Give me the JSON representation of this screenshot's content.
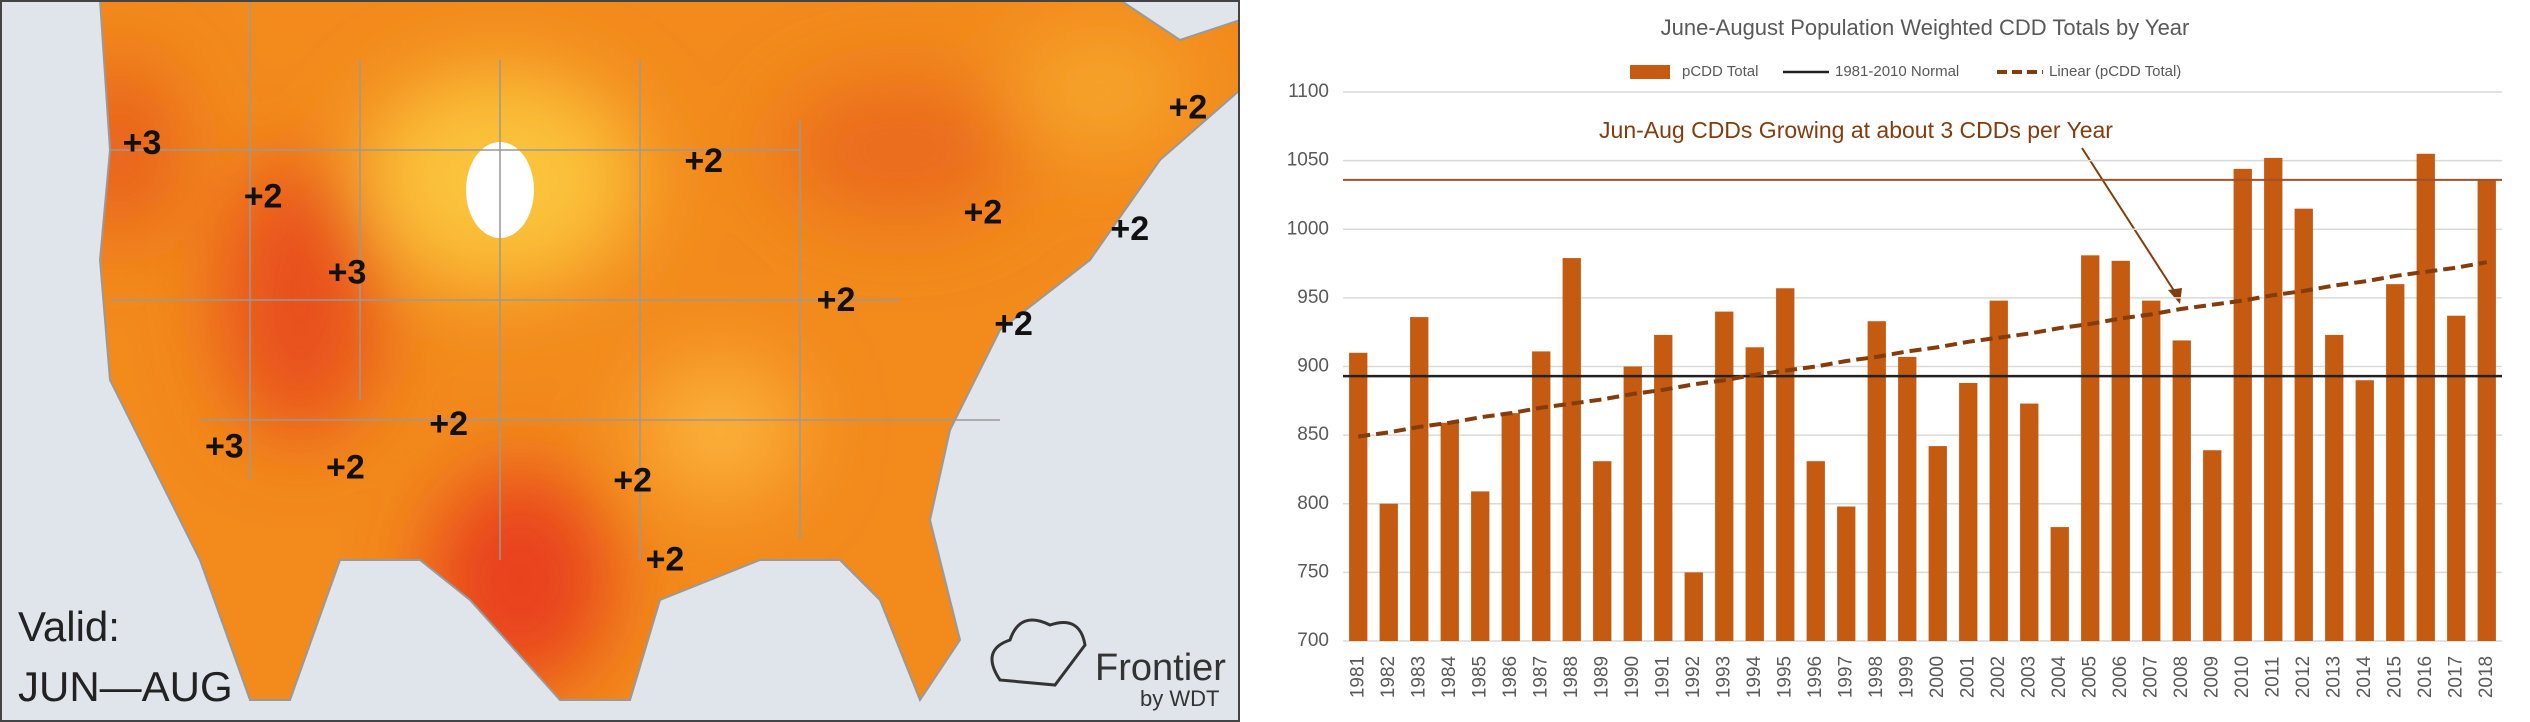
{
  "map": {
    "labels": [
      {
        "text": "+3",
        "x": 88,
        "y": 90
      },
      {
        "text": "+2",
        "x": 163,
        "y": 123
      },
      {
        "text": "+3",
        "x": 215,
        "y": 170
      },
      {
        "text": "+2",
        "x": 436,
        "y": 101
      },
      {
        "text": "+2",
        "x": 736,
        "y": 68
      },
      {
        "text": "+2",
        "x": 609,
        "y": 133
      },
      {
        "text": "+2",
        "x": 700,
        "y": 143
      },
      {
        "text": "+2",
        "x": 518,
        "y": 187
      },
      {
        "text": "+2",
        "x": 628,
        "y": 202
      },
      {
        "text": "+3",
        "x": 139,
        "y": 278
      },
      {
        "text": "+2",
        "x": 214,
        "y": 291
      },
      {
        "text": "+2",
        "x": 278,
        "y": 264
      },
      {
        "text": "+2",
        "x": 392,
        "y": 299
      },
      {
        "text": "+2",
        "x": 412,
        "y": 348
      }
    ],
    "valid_label": "Valid:",
    "valid_period": "JUN—AUG",
    "brand": "Frontier",
    "brand_sub": "by WDT"
  },
  "chart_data": {
    "type": "bar",
    "title": "June-August Population Weighted CDD Totals by Year",
    "annotation": "Jun-Aug CDDs Growing at about 3 CDDs per Year",
    "categories": [
      "1981",
      "1982",
      "1983",
      "1984",
      "1985",
      "1986",
      "1987",
      "1988",
      "1989",
      "1990",
      "1991",
      "1992",
      "1993",
      "1994",
      "1995",
      "1996",
      "1997",
      "1998",
      "1999",
      "2000",
      "2001",
      "2002",
      "2003",
      "2004",
      "2005",
      "2006",
      "2007",
      "2008",
      "2009",
      "2010",
      "2011",
      "2012",
      "2013",
      "2014",
      "2015",
      "2016",
      "2017",
      "2018"
    ],
    "series": [
      {
        "name": "pCDD Total",
        "color": "#c55a11",
        "values": [
          910,
          800,
          936,
          859,
          809,
          866,
          911,
          979,
          831,
          900,
          923,
          750,
          940,
          914,
          957,
          831,
          798,
          933,
          907,
          842,
          888,
          948,
          873,
          783,
          981,
          977,
          948,
          919,
          839,
          1044,
          1052,
          1015,
          923,
          890,
          960,
          1055,
          937,
          1036
        ]
      },
      {
        "name": "1981-2010 Normal",
        "color": "#222222",
        "value": 893
      },
      {
        "name": "Linear (pCDD Total)",
        "color": "#843c0c",
        "values": [
          849,
          852,
          856,
          859,
          863,
          866,
          870,
          873,
          876,
          880,
          883,
          887,
          890,
          894,
          897,
          900,
          904,
          907,
          911,
          914,
          918,
          921,
          924,
          928,
          931,
          935,
          938,
          942,
          945,
          948,
          952,
          955,
          959,
          962,
          966,
          969,
          972,
          976
        ]
      }
    ],
    "reference_line": {
      "value": 1036,
      "color": "#a0522d"
    },
    "ylim": [
      700,
      1100
    ],
    "yticks": [
      700,
      750,
      800,
      850,
      900,
      950,
      1000,
      1050,
      1100
    ],
    "grid": true
  }
}
